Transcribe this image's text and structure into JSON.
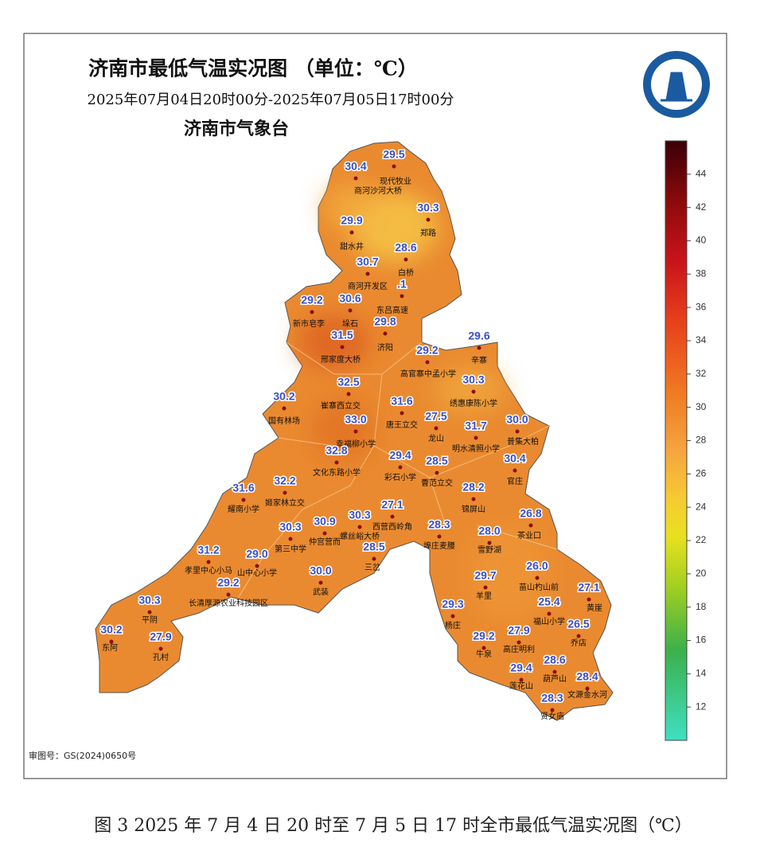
{
  "header": {
    "title": "济南市最低气温实况图 （单位：℃）",
    "subtitle": "2025年07月04日20时00分-2025年07月05日17时00分",
    "agency": "济南市气象台"
  },
  "colorbar": {
    "ylim": [
      10,
      46
    ],
    "ticks": [
      12,
      14,
      16,
      18,
      20,
      22,
      24,
      26,
      28,
      30,
      32,
      34,
      36,
      38,
      40,
      42,
      44
    ]
  },
  "stations": [
    {
      "name": "商河沙河大桥",
      "value": "30.4"
    },
    {
      "name": "现代牧业",
      "value": "29.5"
    },
    {
      "name": "郑路",
      "value": "30.3"
    },
    {
      "name": "甜水井",
      "value": "29.9"
    },
    {
      "name": "白桥",
      "value": "28.6"
    },
    {
      "name": "商河开发区",
      "value": "30.7"
    },
    {
      "name": "新市皂李",
      "value": "29.2"
    },
    {
      "name": "垛石",
      "value": "30.6"
    },
    {
      "name": "东吕高速",
      "value": ".1"
    },
    {
      "name": "济阳",
      "value": "29.8"
    },
    {
      "name": "邢家度大桥",
      "value": "31.5"
    },
    {
      "name": "辛寨",
      "value": "29.6"
    },
    {
      "name": "高官寨中孟小学",
      "value": "29.2"
    },
    {
      "name": "绣惠康陈小学",
      "value": "30.3"
    },
    {
      "name": "崔寨西立交",
      "value": "32.5"
    },
    {
      "name": "国有林场",
      "value": "30.2"
    },
    {
      "name": "唐王立交",
      "value": "31.6"
    },
    {
      "name": "幸福柳小学",
      "value": "33.0"
    },
    {
      "name": "龙山",
      "value": "27.5"
    },
    {
      "name": "明水清照小学",
      "value": "31.7"
    },
    {
      "name": "普集大柏",
      "value": "30.0"
    },
    {
      "name": "文化东路小学",
      "value": "32.8"
    },
    {
      "name": "彩石小学",
      "value": "29.4"
    },
    {
      "name": "曹范立交",
      "value": "28.5"
    },
    {
      "name": "官庄",
      "value": "30.4"
    },
    {
      "name": "耀南小学",
      "value": "31.6"
    },
    {
      "name": "姬家林立交",
      "value": "32.2"
    },
    {
      "name": "锦屏山",
      "value": "28.2"
    },
    {
      "name": "西营西岭角",
      "value": "27.1"
    },
    {
      "name": "螺丝峪大桥",
      "value": "30.3"
    },
    {
      "name": "仲宫营而",
      "value": "30.9"
    },
    {
      "name": "茶业口",
      "value": "26.8"
    },
    {
      "name": "第三中学",
      "value": "30.3"
    },
    {
      "name": "埠庄麦腰",
      "value": "28.3"
    },
    {
      "name": "雪野湖",
      "value": "28.0"
    },
    {
      "name": "孝里中心小马",
      "value": "31.2"
    },
    {
      "name": "山中心小学",
      "value": "29.0"
    },
    {
      "name": "三岔",
      "value": "28.5"
    },
    {
      "name": "武装",
      "value": "30.0"
    },
    {
      "name": "苗山杓山前",
      "value": "26.0"
    },
    {
      "name": "羊里",
      "value": "29.7"
    },
    {
      "name": "长清厚源农业科技园区",
      "value": "29.2"
    },
    {
      "name": "黄崖",
      "value": "27.1"
    },
    {
      "name": "平阴",
      "value": "30.3"
    },
    {
      "name": "福山小学",
      "value": "25.4"
    },
    {
      "name": "杨庄",
      "value": "29.3"
    },
    {
      "name": "东阿",
      "value": "30.2"
    },
    {
      "name": "孔村",
      "value": "27.9"
    },
    {
      "name": "乔店",
      "value": "26.5"
    },
    {
      "name": "牛泉",
      "value": "29.2"
    },
    {
      "name": "高庄明利",
      "value": "27.9"
    },
    {
      "name": "葫芦山",
      "value": "28.6"
    },
    {
      "name": "莲花山",
      "value": "29.4"
    },
    {
      "name": "文源金水河",
      "value": "28.4"
    },
    {
      "name": "贤女庙",
      "value": "28.3"
    }
  ],
  "footer": {
    "approval": "审图号：GS(2024)0650号"
  },
  "caption": "图 3 2025 年 7 月 4 日 20 时至 7 月 5 日 17 时全市最低气温实况图（℃）"
}
